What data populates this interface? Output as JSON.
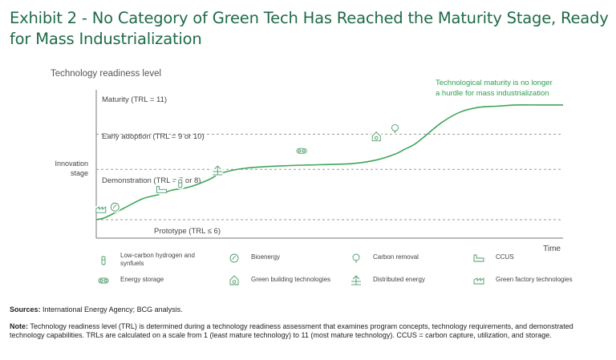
{
  "title": {
    "line1": "Exhibit 2 - No Category of Green Tech Has Reached the Maturity Stage, Ready",
    "line2": "for Mass Industrialization"
  },
  "colors": {
    "title": "#1e6b47",
    "line": "#3ea55a",
    "annotation": "#2e9e4f",
    "dashed": "#9a9a9a",
    "icon": "#4a9a68"
  },
  "chart_data": {
    "type": "line",
    "title": "Exhibit 2 - No Category of Green Tech Has Reached the Maturity Stage, Ready for Mass Industrialization",
    "xlabel": "Time",
    "ylabel": "Innovation stage",
    "ylabel_top": "Technology readiness level",
    "xlim": [
      0,
      100
    ],
    "ylim": [
      0,
      100
    ],
    "grid": false,
    "levels": [
      {
        "name": "Maturity (TRL = 11)",
        "y": 100
      },
      {
        "name": "Early adoption (TRL = 9 or 10)",
        "y": 73
      },
      {
        "name": "Demonstration (TRL = 7 or 8)",
        "y": 43
      },
      {
        "name": "Prototype (TRL ≤ 6)",
        "y": 0
      }
    ],
    "band_lines": [
      73,
      43,
      0
    ],
    "annotation": "Technological maturity is no longer a hurdle for mass industrialization",
    "curve": {
      "x": [
        0,
        2,
        6,
        10,
        14,
        16,
        20,
        24,
        27,
        32,
        40,
        48,
        55,
        60,
        64,
        66,
        68,
        70,
        74,
        78,
        82,
        86,
        90,
        95,
        100
      ],
      "y": [
        0,
        2,
        10,
        18,
        22,
        25,
        28,
        34,
        40,
        44,
        46,
        47,
        48,
        51,
        56,
        60,
        64,
        70,
        83,
        92,
        96,
        97,
        98,
        98,
        98
      ]
    },
    "markers": [
      {
        "category": "Green factory technologies",
        "x": 1,
        "y": 4
      },
      {
        "category": "Bioenergy",
        "x": 4,
        "y": 6
      },
      {
        "category": "CCUS",
        "x": 14,
        "y": 21
      },
      {
        "category": "Low-carbon hydrogen and synfuels",
        "x": 18,
        "y": 26
      },
      {
        "category": "Distributed energy",
        "x": 26,
        "y": 37
      },
      {
        "category": "Energy storage",
        "x": 44,
        "y": 54
      },
      {
        "category": "Green building technologies",
        "x": 60,
        "y": 66
      },
      {
        "category": "Carbon removal",
        "x": 64,
        "y": 73
      }
    ]
  },
  "legend": [
    {
      "icon": "hydrogen-icon",
      "label": "Low-carbon hydrogen and synfuels"
    },
    {
      "icon": "bioenergy-icon",
      "label": "Bioenergy"
    },
    {
      "icon": "carbon-removal-icon",
      "label": "Carbon removal"
    },
    {
      "icon": "ccus-icon",
      "label": "CCUS"
    },
    {
      "icon": "energy-storage-icon",
      "label": "Energy storage"
    },
    {
      "icon": "green-building-icon",
      "label": "Green building technologies"
    },
    {
      "icon": "distributed-energy-icon",
      "label": "Distributed energy"
    },
    {
      "icon": "green-factory-icon",
      "label": "Green factory technologies"
    }
  ],
  "footer": {
    "sources_label": "Sources:",
    "sources_text": " International Energy Agency; BCG analysis.",
    "note_label": "Note:",
    "note_text": " Technology readiness level (TRL) is determined during a technology readiness assessment that examines program concepts, technology requirements, and demonstrated technology capabilities. TRLs are calculated on a scale from 1 (least mature technology) to 11 (most mature technology). CCUS = carbon capture, utilization, and storage."
  }
}
